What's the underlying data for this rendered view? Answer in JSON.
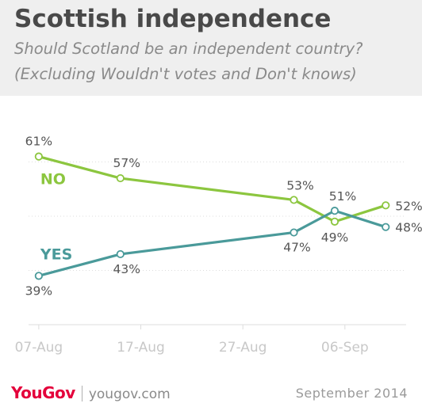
{
  "header": {
    "title": "Scottish independence",
    "subtitle_line1": "Should Scotland be an independent country?",
    "subtitle_line2": "(Excluding Wouldn't votes and Don't knows)"
  },
  "footer": {
    "brand": "YouGov",
    "site": "yougov.com",
    "date": "September 2014"
  },
  "colors": {
    "no": "#8cc63f",
    "yes": "#4a9a9a",
    "grid": "#dddddd",
    "axis_text": "#c8c8c8",
    "label_text": "#555555"
  },
  "chart_data": {
    "type": "line",
    "x_tick_labels": [
      "07-Aug",
      "17-Aug",
      "27-Aug",
      "06-Sep"
    ],
    "x_ticks": [
      "2014-08-07",
      "2014-08-17",
      "2014-08-27",
      "2014-09-06"
    ],
    "xlim": [
      "2014-08-06",
      "2014-09-12"
    ],
    "ylim": [
      30,
      70
    ],
    "grid": true,
    "series": [
      {
        "name": "NO",
        "color": "#8cc63f",
        "x": [
          "2014-08-07",
          "2014-08-15",
          "2014-09-01",
          "2014-09-05",
          "2014-09-10"
        ],
        "values": [
          61,
          57,
          53,
          49,
          52
        ],
        "labels": [
          "61%",
          "57%",
          "53%",
          "49%",
          "52%"
        ]
      },
      {
        "name": "YES",
        "color": "#4a9a9a",
        "x": [
          "2014-08-07",
          "2014-08-15",
          "2014-09-01",
          "2014-09-05",
          "2014-09-10"
        ],
        "values": [
          39,
          43,
          47,
          51,
          48
        ],
        "labels": [
          "39%",
          "43%",
          "47%",
          "51%",
          "48%"
        ]
      }
    ]
  }
}
